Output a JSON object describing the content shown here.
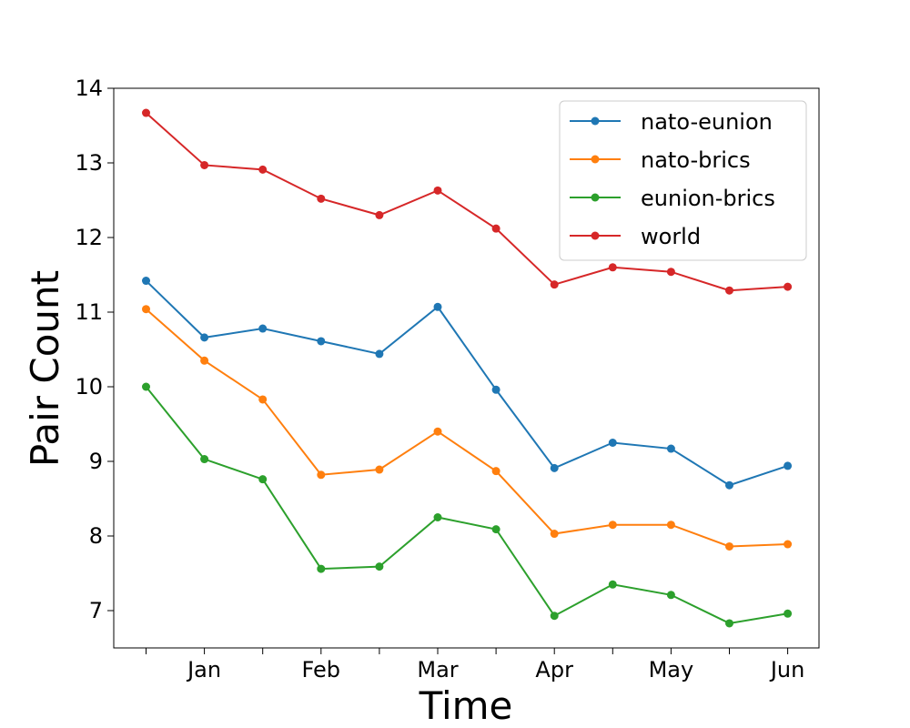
{
  "chart_data": {
    "type": "line",
    "xlabel": "Time",
    "ylabel": "Pair Count",
    "x_tick_labels": [
      "Jan",
      "Feb",
      "Mar",
      "Apr",
      "May",
      "Jun"
    ],
    "y_ticks": [
      7,
      8,
      9,
      10,
      11,
      12,
      13,
      14
    ],
    "ylim": [
      6.5,
      14.0
    ],
    "grid": false,
    "legend_position": "top-right",
    "series": [
      {
        "name": "nato-eunion",
        "color": "#1f77b4",
        "values": [
          11.42,
          10.66,
          10.78,
          10.61,
          10.44,
          11.07,
          9.96,
          8.91,
          9.25,
          9.17,
          8.68,
          8.94
        ]
      },
      {
        "name": "nato-brics",
        "color": "#ff7f0e",
        "values": [
          11.04,
          10.35,
          9.83,
          8.82,
          8.89,
          9.4,
          8.87,
          8.03,
          8.15,
          8.15,
          7.86,
          7.89
        ]
      },
      {
        "name": "eunion-brics",
        "color": "#2ca02c",
        "values": [
          10.0,
          9.03,
          8.76,
          7.56,
          7.59,
          8.25,
          8.09,
          6.93,
          7.35,
          7.21,
          6.83,
          6.96
        ]
      },
      {
        "name": "world",
        "color": "#d62728",
        "values": [
          13.67,
          12.97,
          12.91,
          12.52,
          12.3,
          12.63,
          12.12,
          11.37,
          11.6,
          11.54,
          11.29,
          11.34
        ]
      }
    ]
  }
}
